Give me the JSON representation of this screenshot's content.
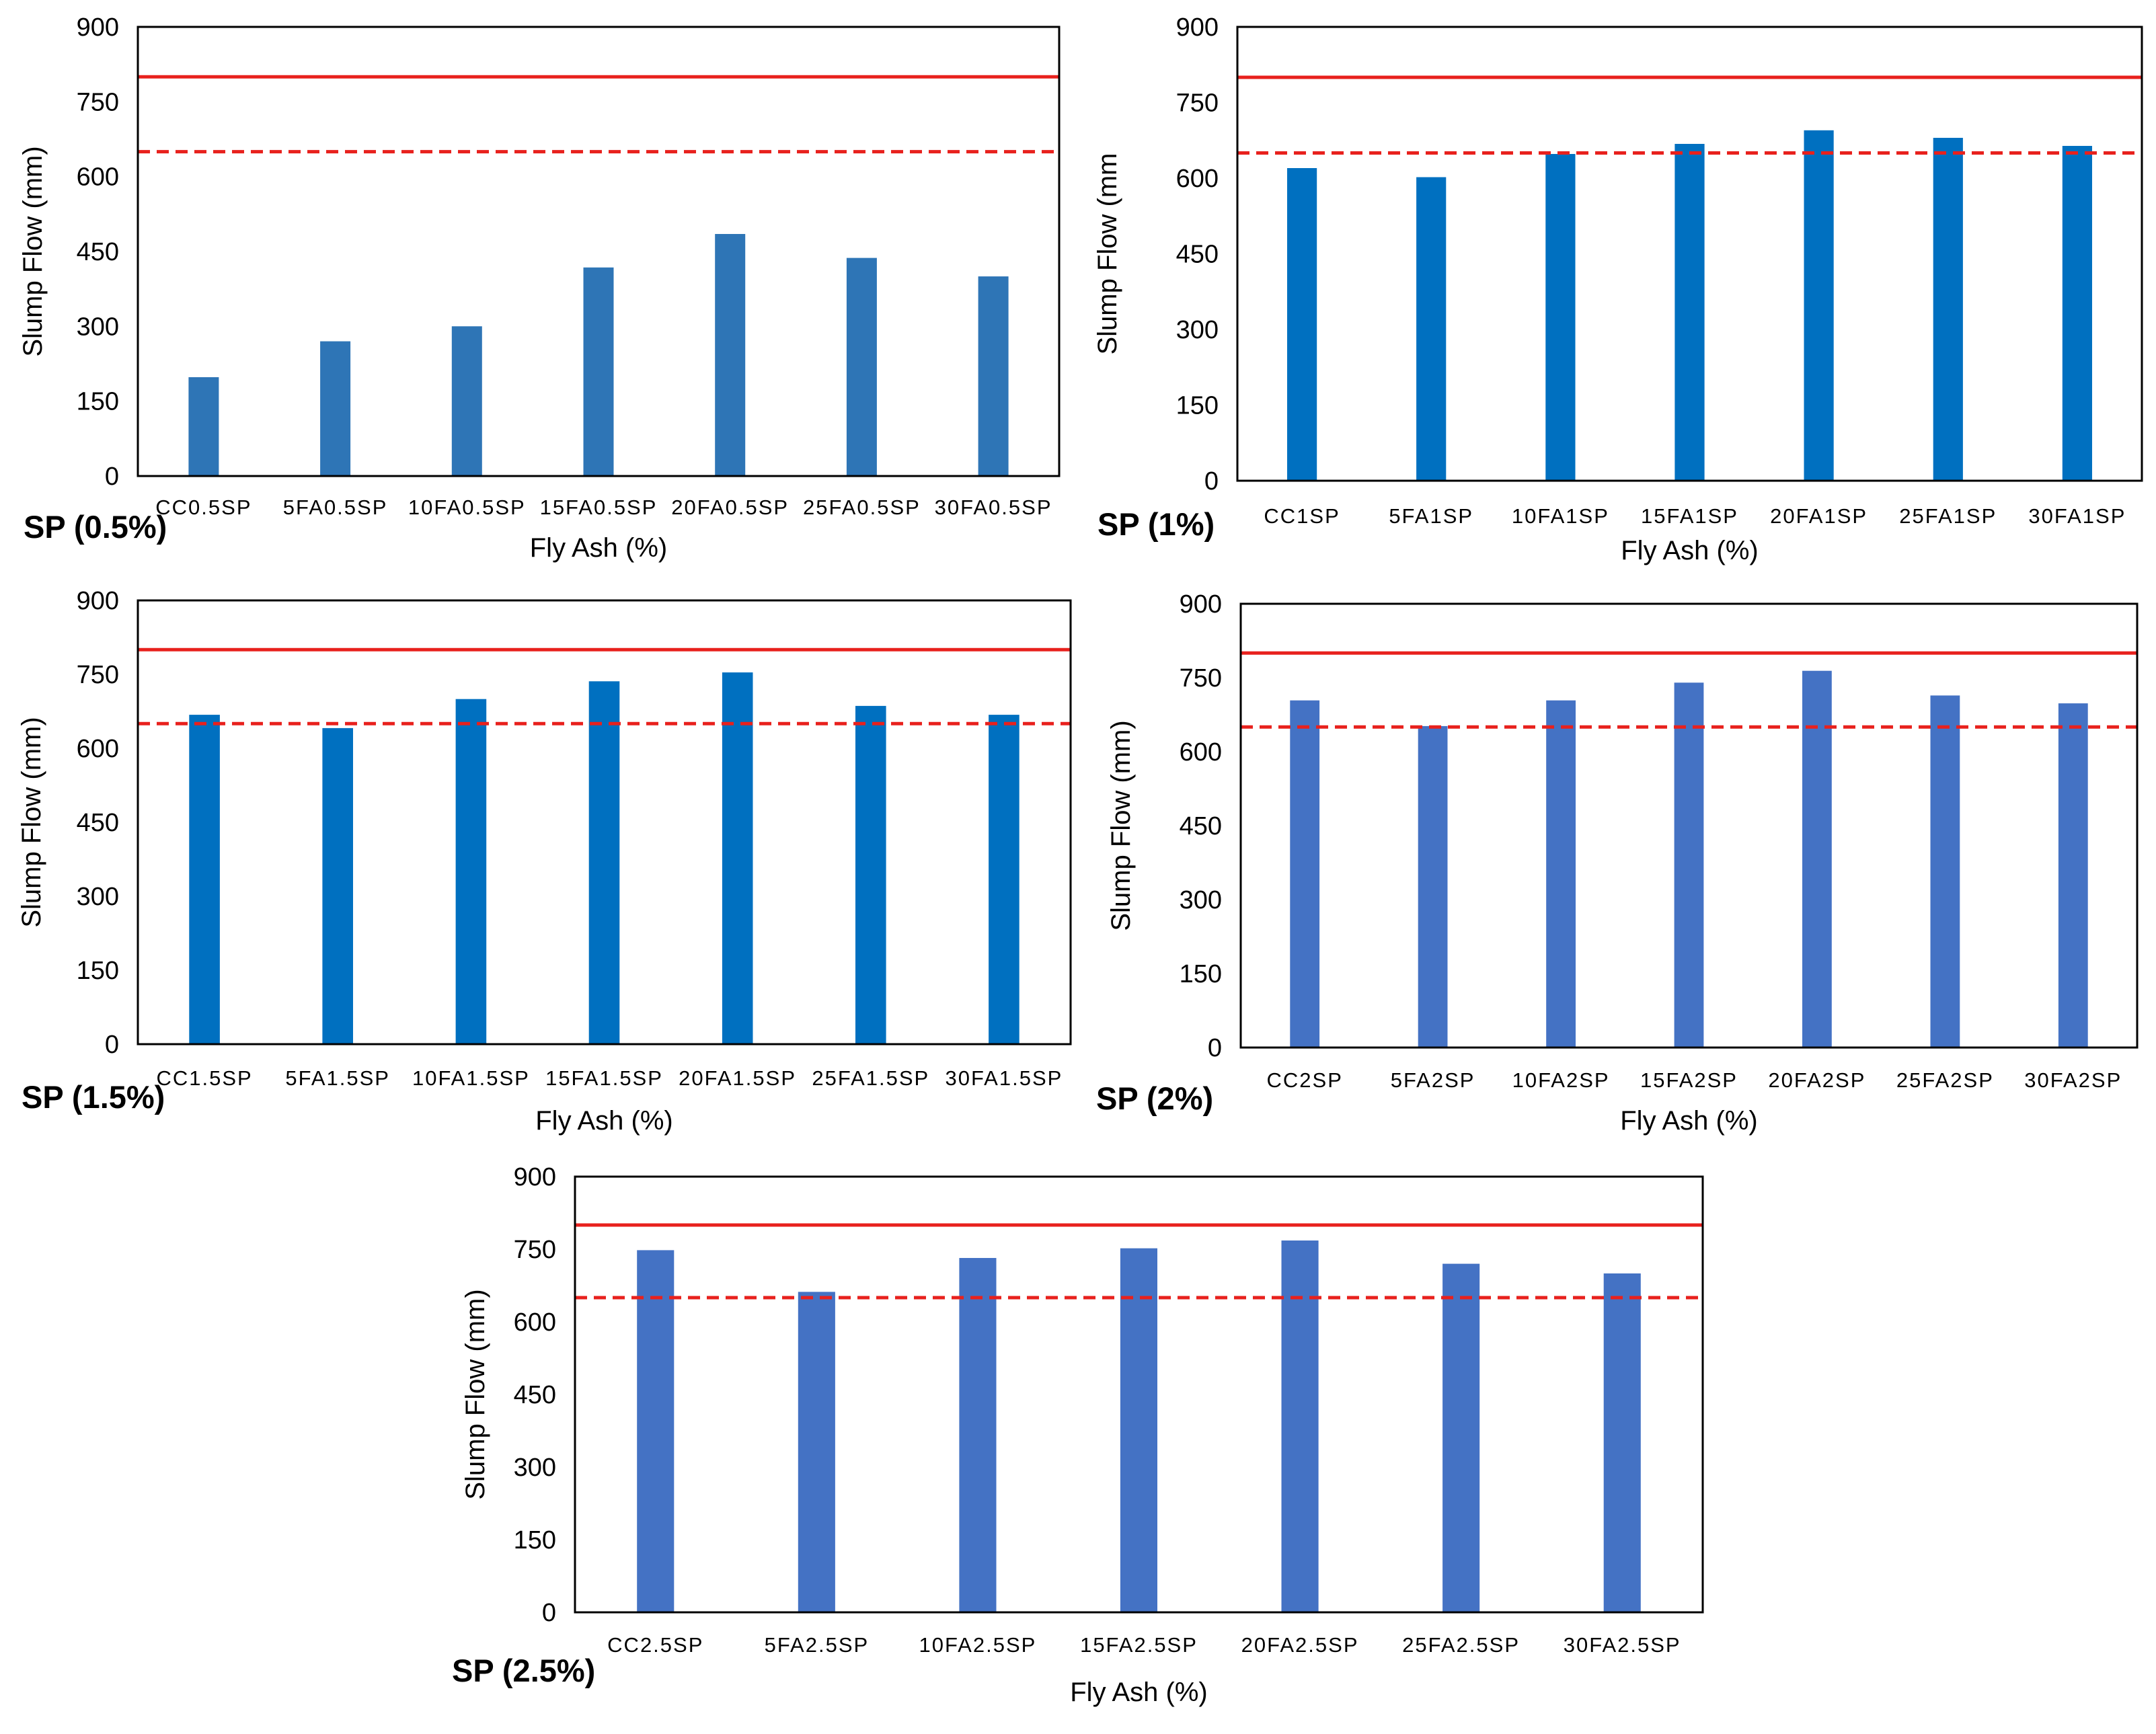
{
  "chart_data": [
    {
      "type": "bar",
      "label": "SP (0.5%)",
      "xlabel": "Fly Ash (%)",
      "ylabel": "Slump Flow (mm)",
      "ylim": [
        0,
        900
      ],
      "yticks": [
        "0",
        "150",
        "300",
        "450",
        "600",
        "750",
        "900"
      ],
      "categories": [
        "CC0.5SP",
        "5FA0.5SP",
        "10FA0.5SP",
        "15FA0.5SP",
        "20FA0.5SP",
        "25FA0.5SP",
        "30FA0.5SP"
      ],
      "values": [
        198,
        270,
        300,
        418,
        485,
        437,
        400
      ],
      "reference_lines": [
        {
          "value": 800,
          "style": "solid",
          "color": "#E8211D"
        },
        {
          "value": 650,
          "style": "dashed",
          "color": "#E8211D"
        }
      ],
      "bar_color": "#2E75B6",
      "grid": false
    },
    {
      "type": "bar",
      "label": "SP (1%)",
      "xlabel": "Fly Ash (%)",
      "ylabel": "Slump Flow (mm",
      "ylim": [
        0,
        900
      ],
      "yticks": [
        "0",
        "150",
        "300",
        "450",
        "600",
        "750",
        "900"
      ],
      "categories": [
        "CC1SP",
        "5FA1SP",
        "10FA1SP",
        "15FA1SP",
        "20FA1SP",
        "25FA1SP",
        "30FA1SP"
      ],
      "values": [
        620,
        602,
        648,
        668,
        695,
        680,
        664
      ],
      "reference_lines": [
        {
          "value": 800,
          "style": "solid",
          "color": "#E8211D"
        },
        {
          "value": 650,
          "style": "dashed",
          "color": "#E8211D"
        }
      ],
      "bar_color": "#0070C0",
      "grid": false
    },
    {
      "type": "bar",
      "label": "SP (1.5%)",
      "xlabel": "Fly Ash (%)",
      "ylabel": "Slump Flow (mm)",
      "ylim": [
        0,
        900
      ],
      "yticks": [
        "0",
        "150",
        "300",
        "450",
        "600",
        "750",
        "900"
      ],
      "categories": [
        "CC1.5SP",
        "5FA1.5SP",
        "10FA1.5SP",
        "15FA1.5SP",
        "20FA1.5SP",
        "25FA1.5SP",
        "30FA1.5SP"
      ],
      "values": [
        668,
        641,
        700,
        736,
        754,
        686,
        668
      ],
      "reference_lines": [
        {
          "value": 800,
          "style": "solid",
          "color": "#E8211D"
        },
        {
          "value": 650,
          "style": "dashed",
          "color": "#E8211D"
        }
      ],
      "bar_color": "#0070C0",
      "grid": false
    },
    {
      "type": "bar",
      "label": "SP (2%)",
      "xlabel": "Fly Ash (%)",
      "ylabel": "Slump Flow (mm)",
      "ylim": [
        0,
        900
      ],
      "yticks": [
        "0",
        "150",
        "300",
        "450",
        "600",
        "750",
        "900"
      ],
      "categories": [
        "CC2SP",
        "5FA2SP",
        "10FA2SP",
        "15FA2SP",
        "20FA2SP",
        "25FA2SP",
        "30FA2SP"
      ],
      "values": [
        704,
        652,
        704,
        740,
        764,
        714,
        698
      ],
      "reference_lines": [
        {
          "value": 800,
          "style": "solid",
          "color": "#E8211D"
        },
        {
          "value": 650,
          "style": "dashed",
          "color": "#E8211D"
        }
      ],
      "bar_color": "#4472C4",
      "grid": false
    },
    {
      "type": "bar",
      "label": "SP (2.5%)",
      "xlabel": "Fly Ash (%)",
      "ylabel": "Slump Flow (mm)",
      "ylim": [
        0,
        900
      ],
      "yticks": [
        "0",
        "150",
        "300",
        "450",
        "600",
        "750",
        "900"
      ],
      "categories": [
        "CC2.5SP",
        "5FA2.5SP",
        "10FA2.5SP",
        "15FA2.5SP",
        "20FA2.5SP",
        "25FA2.5SP",
        "30FA2.5SP"
      ],
      "values": [
        748,
        662,
        732,
        752,
        768,
        720,
        700
      ],
      "reference_lines": [
        {
          "value": 800,
          "style": "solid",
          "color": "#E8211D"
        },
        {
          "value": 650,
          "style": "dashed",
          "color": "#E8211D"
        }
      ],
      "bar_color": "#4472C4",
      "grid": false
    }
  ]
}
